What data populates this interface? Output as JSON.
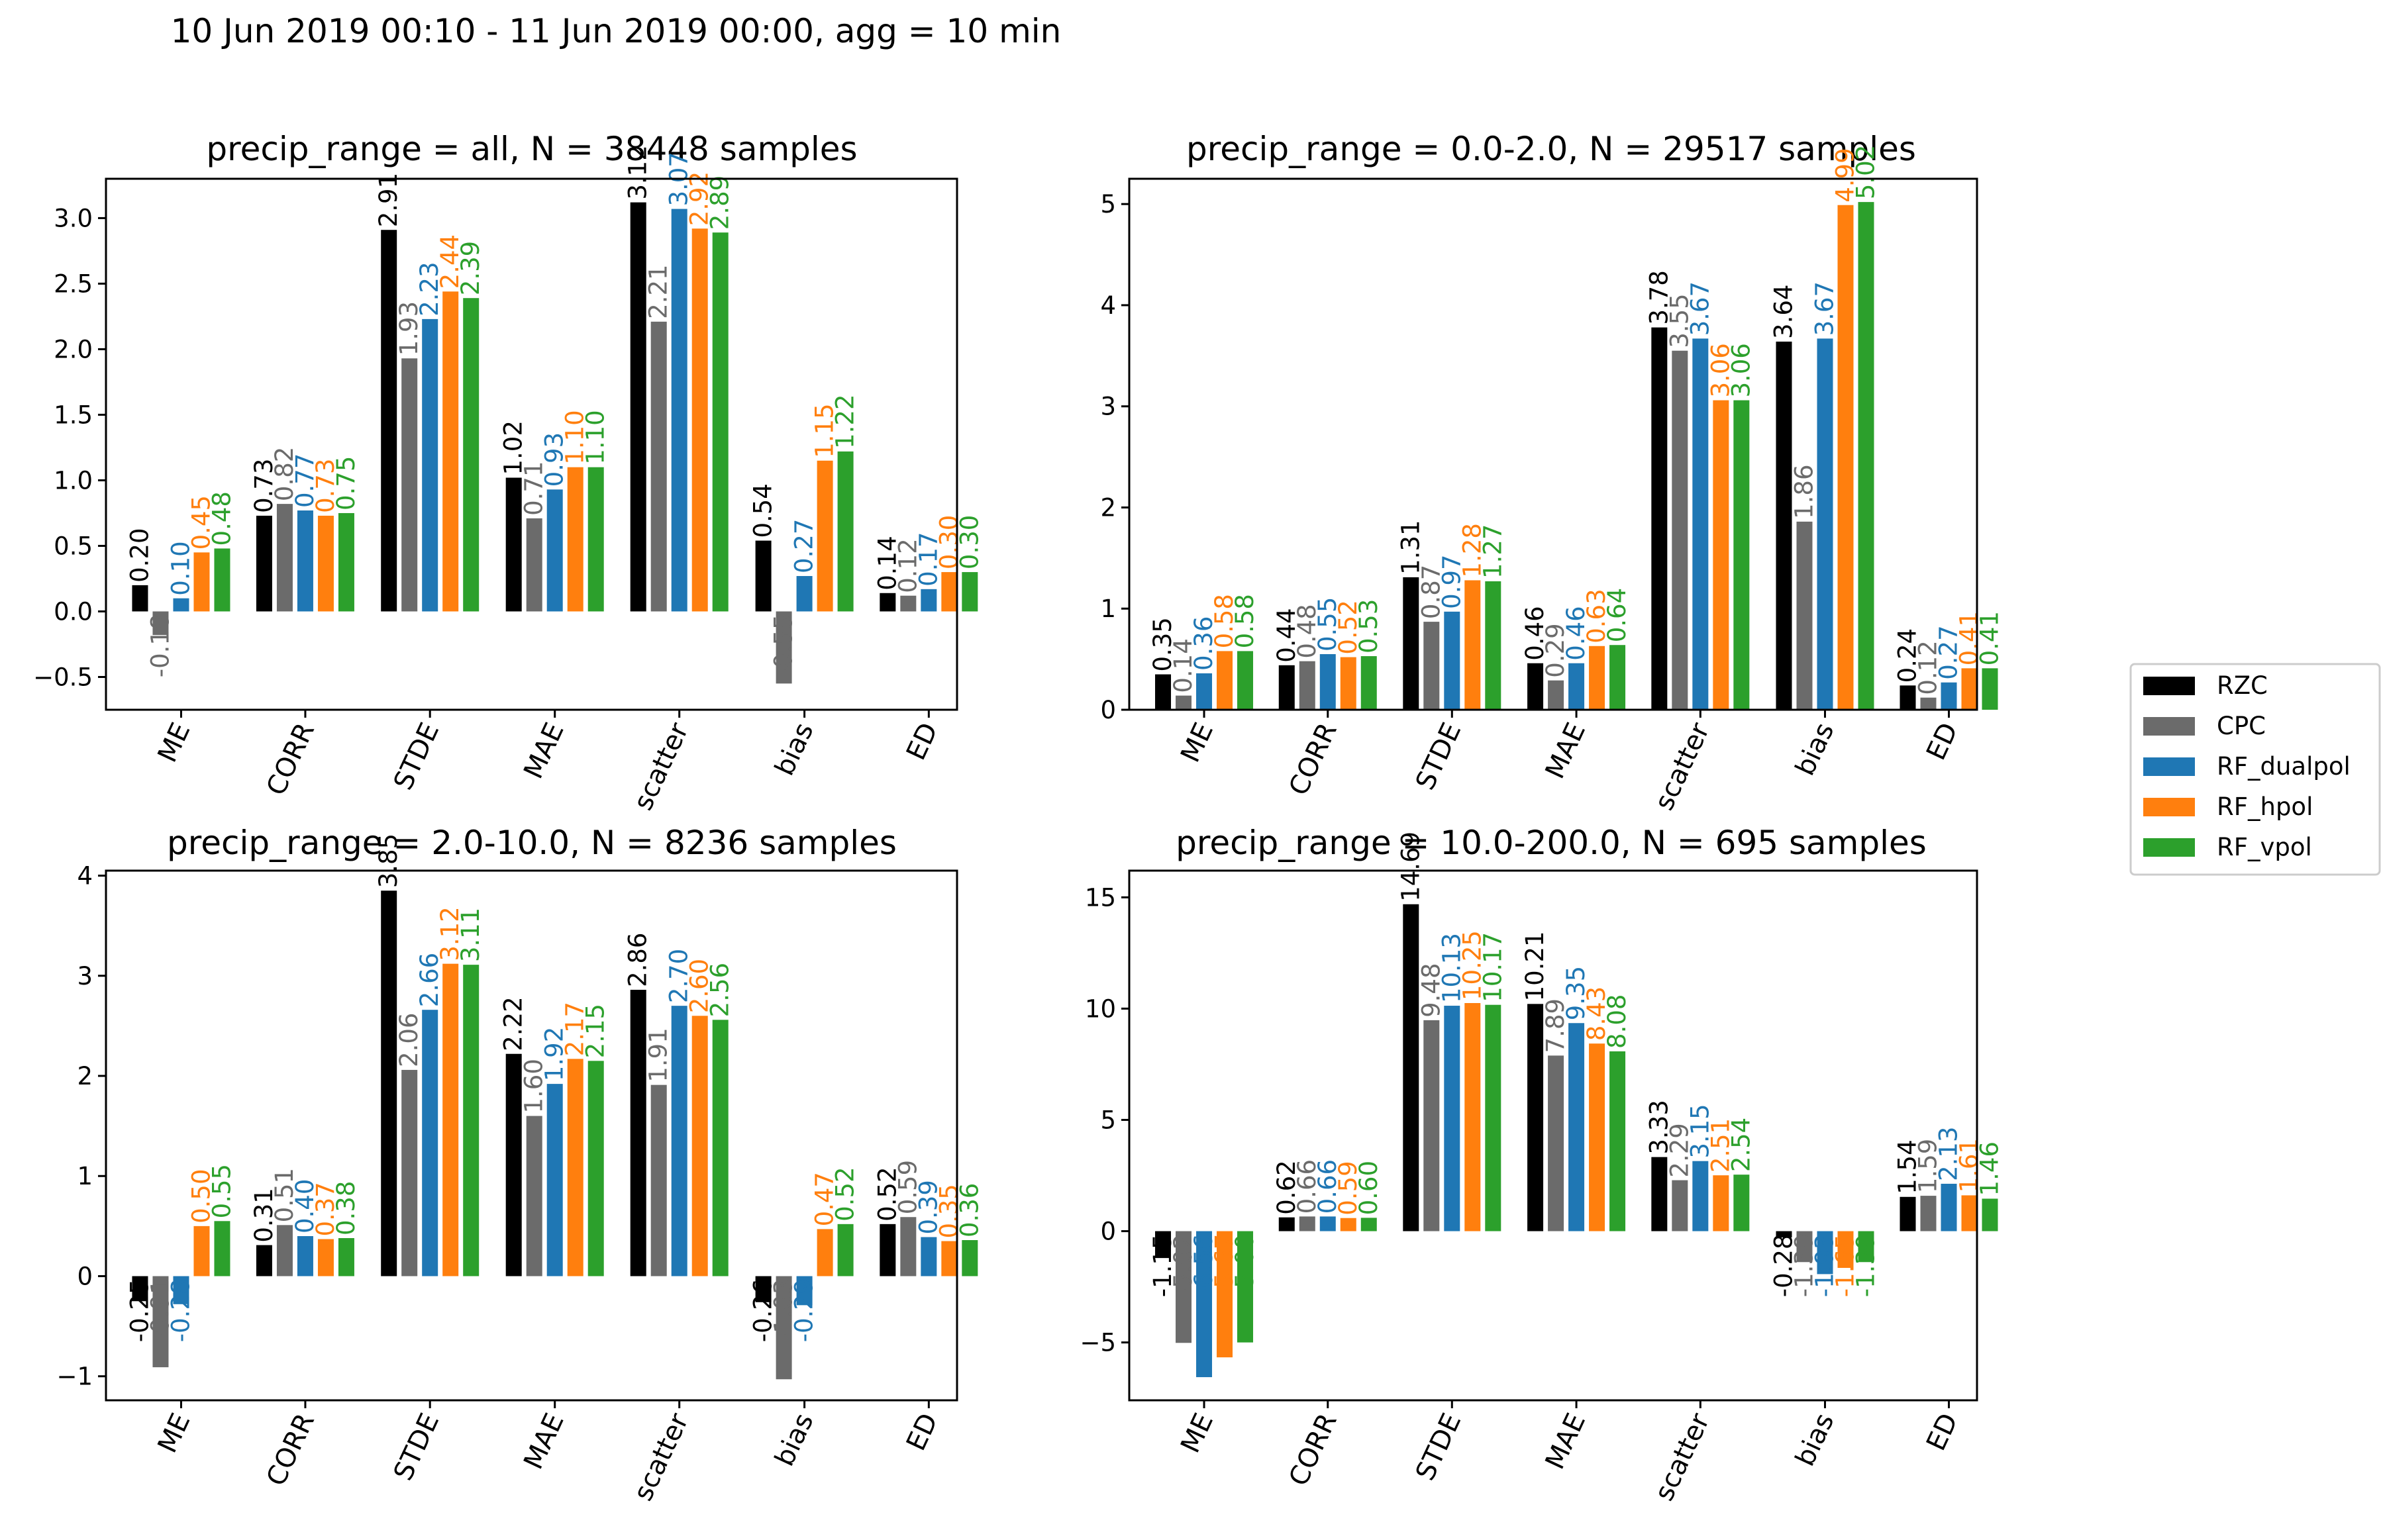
{
  "figure_title": "10 Jun 2019 00:10 - 11 Jun 2019 00:00, agg = 10 min",
  "legend": [
    {
      "name": "RZC",
      "color": "#000000"
    },
    {
      "name": "CPC",
      "color": "#6b6b6b"
    },
    {
      "name": "RF_dualpol",
      "color": "#1f77b4"
    },
    {
      "name": "RF_hpol",
      "color": "#ff7f0e"
    },
    {
      "name": "RF_vpol",
      "color": "#2ca02c"
    }
  ],
  "chart_data": [
    {
      "type": "bar",
      "title": "precip_range = all, N = 38448 samples",
      "categories": [
        "ME",
        "CORR",
        "STDE",
        "MAE",
        "scatter",
        "bias",
        "ED"
      ],
      "ylim": [
        -0.75,
        3.3
      ],
      "yticks": [
        -0.5,
        0.0,
        0.5,
        1.0,
        1.5,
        2.0,
        2.5,
        3.0
      ],
      "ytick_labels": [
        "−0.5",
        "0.0",
        "0.5",
        "1.0",
        "1.5",
        "2.0",
        "2.5",
        "3.0"
      ],
      "series": [
        {
          "name": "RZC",
          "values": [
            0.2,
            0.73,
            2.91,
            1.02,
            3.12,
            0.54,
            0.14
          ]
        },
        {
          "name": "CPC",
          "values": [
            -0.18,
            0.82,
            1.93,
            0.71,
            2.21,
            -0.55,
            0.12
          ]
        },
        {
          "name": "RF_dualpol",
          "values": [
            0.1,
            0.77,
            2.23,
            0.93,
            3.07,
            0.27,
            0.17
          ]
        },
        {
          "name": "RF_hpol",
          "values": [
            0.45,
            0.73,
            2.44,
            1.1,
            2.92,
            1.15,
            0.3
          ]
        },
        {
          "name": "RF_vpol",
          "values": [
            0.48,
            0.75,
            2.39,
            1.1,
            2.89,
            1.22,
            0.3
          ]
        }
      ],
      "labels": [
        [
          "0.20",
          "0.73",
          "2.91",
          "1.02",
          "3.12",
          "0.54",
          "0.14"
        ],
        [
          "-0.18",
          "0.82",
          "1.93",
          "0.71",
          "2.21",
          "-0.55",
          "0.12"
        ],
        [
          "0.10",
          "0.77",
          "2.23",
          "0.93",
          "3.07",
          "0.27",
          "0.17"
        ],
        [
          "0.45",
          "0.73",
          "2.44",
          "1.10",
          "2.92",
          "1.15",
          "0.30"
        ],
        [
          "0.48",
          "0.75",
          "2.39",
          "1.10",
          "2.89",
          "1.22",
          "0.30"
        ]
      ]
    },
    {
      "type": "bar",
      "title": "precip_range = 0.0-2.0, N = 29517 samples",
      "categories": [
        "ME",
        "CORR",
        "STDE",
        "MAE",
        "scatter",
        "bias",
        "ED"
      ],
      "ylim": [
        0,
        5.25
      ],
      "yticks": [
        0,
        1,
        2,
        3,
        4,
        5
      ],
      "ytick_labels": [
        "0",
        "1",
        "2",
        "3",
        "4",
        "5"
      ],
      "series": [
        {
          "name": "RZC",
          "values": [
            0.35,
            0.44,
            1.31,
            0.46,
            3.78,
            3.64,
            0.24
          ]
        },
        {
          "name": "CPC",
          "values": [
            0.14,
            0.48,
            0.87,
            0.29,
            3.55,
            1.86,
            0.12
          ]
        },
        {
          "name": "RF_dualpol",
          "values": [
            0.36,
            0.55,
            0.97,
            0.46,
            3.67,
            3.67,
            0.27
          ]
        },
        {
          "name": "RF_hpol",
          "values": [
            0.58,
            0.52,
            1.28,
            0.63,
            3.06,
            4.99,
            0.41
          ]
        },
        {
          "name": "RF_vpol",
          "values": [
            0.58,
            0.53,
            1.27,
            0.64,
            3.06,
            5.02,
            0.41
          ]
        }
      ],
      "labels": [
        [
          "0.35",
          "0.44",
          "1.31",
          "0.46",
          "3.78",
          "3.64",
          "0.24"
        ],
        [
          "0.14",
          "0.48",
          "0.87",
          "0.29",
          "3.55",
          "1.86",
          "0.12"
        ],
        [
          "0.36",
          "0.55",
          "0.97",
          "0.46",
          "3.67",
          "3.67",
          "0.27"
        ],
        [
          "0.58",
          "0.52",
          "1.28",
          "0.63",
          "3.06",
          "4.99",
          "0.41"
        ],
        [
          "0.58",
          "0.53",
          "1.27",
          "0.64",
          "3.06",
          "5.02",
          "0.41"
        ]
      ]
    },
    {
      "type": "bar",
      "title": "precip_range = 2.0-10.0, N = 8236 samples",
      "categories": [
        "ME",
        "CORR",
        "STDE",
        "MAE",
        "scatter",
        "bias",
        "ED"
      ],
      "ylim": [
        -1.24,
        4.05
      ],
      "yticks": [
        -1,
        0,
        1,
        2,
        3,
        4
      ],
      "ytick_labels": [
        "−1",
        "0",
        "1",
        "2",
        "3",
        "4"
      ],
      "series": [
        {
          "name": "RZC",
          "values": [
            -0.25,
            0.31,
            3.85,
            2.22,
            2.86,
            -0.26,
            0.52
          ]
        },
        {
          "name": "CPC",
          "values": [
            -0.91,
            0.51,
            2.06,
            1.6,
            1.91,
            -1.03,
            0.59
          ]
        },
        {
          "name": "RF_dualpol",
          "values": [
            -0.28,
            0.4,
            2.66,
            1.92,
            2.7,
            -0.29,
            0.39
          ]
        },
        {
          "name": "RF_hpol",
          "values": [
            0.5,
            0.37,
            3.12,
            2.17,
            2.6,
            0.47,
            0.35
          ]
        },
        {
          "name": "RF_vpol",
          "values": [
            0.55,
            0.38,
            3.11,
            2.15,
            2.56,
            0.52,
            0.36
          ]
        }
      ],
      "labels": [
        [
          "-0.25",
          "0.31",
          "3.85",
          "2.22",
          "2.86",
          "-0.26",
          "0.52"
        ],
        [
          "-0.91",
          "0.51",
          "2.06",
          "1.60",
          "1.91",
          "-1.03",
          "0.59"
        ],
        [
          "-0.28",
          "0.40",
          "2.66",
          "1.92",
          "2.70",
          "-0.29",
          "0.39"
        ],
        [
          "0.50",
          "0.37",
          "3.12",
          "2.17",
          "2.60",
          "0.47",
          "0.35"
        ],
        [
          "0.55",
          "0.38",
          "3.11",
          "2.15",
          "2.56",
          "0.52",
          "0.36"
        ]
      ]
    },
    {
      "type": "bar",
      "title": "precip_range = 10.0-200.0, N = 695 samples",
      "categories": [
        "ME",
        "CORR",
        "STDE",
        "MAE",
        "scatter",
        "bias",
        "ED"
      ],
      "ylim": [
        -7.6,
        16.2
      ],
      "yticks": [
        -5,
        0,
        5,
        10,
        15
      ],
      "ytick_labels": [
        "−5",
        "0",
        "5",
        "10",
        "15"
      ],
      "series": [
        {
          "name": "RZC",
          "values": [
            -1.15,
            0.62,
            14.69,
            10.21,
            3.33,
            -0.28,
            1.54
          ]
        },
        {
          "name": "CPC",
          "values": [
            -5.02,
            0.66,
            9.48,
            7.89,
            2.29,
            -1.39,
            1.59
          ]
        },
        {
          "name": "RF_dualpol",
          "values": [
            -6.56,
            0.66,
            10.13,
            9.35,
            3.15,
            -1.93,
            2.13
          ]
        },
        {
          "name": "RF_hpol",
          "values": [
            -5.67,
            0.59,
            10.25,
            8.43,
            2.51,
            -1.65,
            1.61
          ]
        },
        {
          "name": "RF_vpol",
          "values": [
            -5.0,
            0.6,
            10.17,
            8.08,
            2.54,
            -1.39,
            1.46
          ]
        }
      ],
      "labels": [
        [
          "-1.15",
          "0.62",
          "14.69",
          "10.21",
          "3.33",
          "-0.28",
          "1.54"
        ],
        [
          "-5.02",
          "0.66",
          "9.48",
          "7.89",
          "2.29",
          "-1.39",
          "1.59"
        ],
        [
          "-6.56",
          "0.66",
          "10.13",
          "9.35",
          "3.15",
          "-1.93",
          "2.13"
        ],
        [
          "-5.67",
          "0.59",
          "10.25",
          "8.43",
          "2.51",
          "-1.65",
          "1.61"
        ],
        [
          "-5.00",
          "0.60",
          "10.17",
          "8.08",
          "2.54",
          "-1.39",
          "1.46"
        ]
      ]
    }
  ]
}
